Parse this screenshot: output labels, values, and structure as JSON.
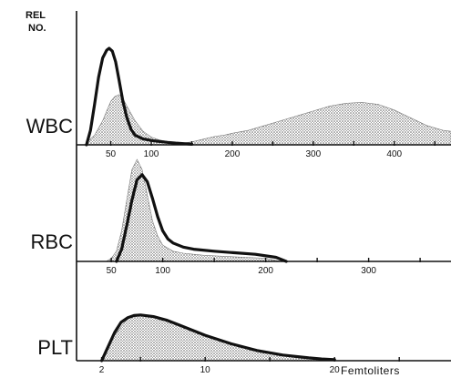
{
  "chart_data": [
    {
      "type": "area",
      "panel": "WBC",
      "xscale": "linear",
      "xlim": [
        10,
        470
      ],
      "xticks": [
        50,
        100,
        150,
        200,
        250,
        300,
        350,
        400,
        450
      ],
      "xtick_labels": [
        {
          "value": 50,
          "label": "50"
        },
        {
          "value": 100,
          "label": "100"
        },
        {
          "value": 200,
          "label": "200"
        },
        {
          "value": 300,
          "label": "300"
        },
        {
          "value": 400,
          "label": "400"
        }
      ],
      "series": [
        {
          "style": "shaded",
          "x": [
            20,
            30,
            40,
            45,
            50,
            55,
            60,
            65,
            70,
            80,
            90,
            100,
            110,
            120,
            130,
            140,
            150,
            160,
            170,
            180,
            190,
            200,
            220,
            240,
            260,
            280,
            300,
            320,
            340,
            360,
            380,
            400,
            420,
            440,
            460,
            470
          ],
          "y": [
            0.02,
            0.1,
            0.25,
            0.35,
            0.45,
            0.5,
            0.52,
            0.48,
            0.4,
            0.25,
            0.14,
            0.08,
            0.05,
            0.035,
            0.025,
            0.02,
            0.03,
            0.05,
            0.07,
            0.09,
            0.1,
            0.12,
            0.15,
            0.2,
            0.25,
            0.3,
            0.35,
            0.4,
            0.43,
            0.44,
            0.42,
            0.36,
            0.28,
            0.2,
            0.15,
            0.14
          ]
        },
        {
          "style": "line",
          "x": [
            20,
            25,
            30,
            35,
            40,
            45,
            48,
            52,
            56,
            60,
            65,
            70,
            75,
            80,
            90,
            100,
            110,
            120,
            130,
            140,
            150
          ],
          "y": [
            0.0,
            0.15,
            0.42,
            0.7,
            0.9,
            0.98,
            1.0,
            0.97,
            0.86,
            0.68,
            0.45,
            0.28,
            0.16,
            0.1,
            0.06,
            0.045,
            0.035,
            0.025,
            0.018,
            0.012,
            0.006
          ]
        }
      ]
    },
    {
      "type": "area",
      "panel": "RBC",
      "xscale": "linear",
      "xlim": [
        18,
        380
      ],
      "xticks": [
        50,
        100,
        150,
        200,
        250,
        300,
        350
      ],
      "xtick_labels": [
        {
          "value": 50,
          "label": "50"
        },
        {
          "value": 100,
          "label": "100"
        },
        {
          "value": 200,
          "label": "200"
        },
        {
          "value": 300,
          "label": "300"
        }
      ],
      "series": [
        {
          "style": "shaded",
          "x": [
            45,
            50,
            55,
            60,
            65,
            70,
            75,
            80,
            85,
            90,
            95,
            100,
            110,
            120,
            140,
            160,
            180,
            200,
            210,
            215
          ],
          "y": [
            0.0,
            0.03,
            0.1,
            0.3,
            0.6,
            0.9,
            1.0,
            0.9,
            0.65,
            0.4,
            0.25,
            0.16,
            0.1,
            0.08,
            0.06,
            0.05,
            0.04,
            0.03,
            0.01,
            0.0
          ]
        },
        {
          "style": "line",
          "x": [
            55,
            60,
            65,
            70,
            75,
            80,
            85,
            90,
            95,
            100,
            105,
            110,
            120,
            130,
            150,
            170,
            190,
            210,
            220
          ],
          "y": [
            0.0,
            0.12,
            0.35,
            0.6,
            0.8,
            0.85,
            0.78,
            0.62,
            0.44,
            0.3,
            0.22,
            0.18,
            0.14,
            0.12,
            0.1,
            0.085,
            0.07,
            0.04,
            0.0
          ]
        }
      ]
    },
    {
      "type": "area",
      "panel": "PLT",
      "xscale": "linear",
      "xlim": [
        0.2,
        29
      ],
      "xticks": [
        2,
        5,
        10,
        15,
        20,
        25
      ],
      "xtick_labels": [
        {
          "value": 2,
          "label": "2"
        },
        {
          "value": 10,
          "label": "10"
        },
        {
          "value": 20,
          "label": "20"
        }
      ],
      "xlabel": "Femtoliters",
      "series": [
        {
          "style": "shaded",
          "x": [
            2,
            2.5,
            3,
            4,
            5,
            6,
            7,
            8,
            9,
            10,
            12,
            14,
            16,
            18,
            19,
            20
          ],
          "y": [
            0.0,
            0.2,
            0.45,
            0.75,
            0.82,
            0.8,
            0.72,
            0.64,
            0.55,
            0.45,
            0.3,
            0.18,
            0.1,
            0.05,
            0.03,
            0.0
          ]
        },
        {
          "style": "line",
          "x": [
            2,
            2.5,
            3,
            3.5,
            4,
            4.5,
            5,
            6,
            7,
            8,
            9,
            10,
            12,
            14,
            16,
            18,
            19,
            20
          ],
          "y": [
            0.0,
            0.25,
            0.5,
            0.68,
            0.76,
            0.8,
            0.81,
            0.78,
            0.72,
            0.63,
            0.54,
            0.45,
            0.3,
            0.18,
            0.1,
            0.05,
            0.03,
            0.02
          ]
        }
      ]
    }
  ],
  "labels": {
    "y_axis": "REL\nNO.",
    "panel_names": [
      "WBC",
      "RBC",
      "PLT"
    ],
    "x_axis": "Femtoliters"
  }
}
